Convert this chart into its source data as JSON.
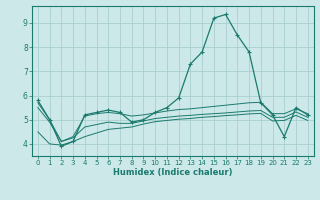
{
  "xlabel": "Humidex (Indice chaleur)",
  "x": [
    0,
    1,
    2,
    3,
    4,
    5,
    6,
    7,
    8,
    9,
    10,
    11,
    12,
    13,
    14,
    15,
    16,
    17,
    18,
    19,
    20,
    21,
    22,
    23
  ],
  "line1": [
    5.8,
    5.0,
    3.9,
    4.1,
    5.2,
    5.3,
    5.4,
    5.3,
    4.9,
    5.0,
    5.3,
    5.5,
    5.9,
    7.3,
    7.8,
    9.2,
    9.35,
    8.5,
    7.8,
    5.7,
    5.2,
    4.3,
    5.5,
    5.2
  ],
  "line2": [
    5.7,
    5.0,
    4.1,
    4.3,
    5.15,
    5.25,
    5.3,
    5.25,
    5.15,
    5.2,
    5.28,
    5.36,
    5.42,
    5.45,
    5.5,
    5.55,
    5.6,
    5.65,
    5.7,
    5.72,
    5.25,
    5.25,
    5.45,
    5.25
  ],
  "line3": [
    5.5,
    4.9,
    4.1,
    4.25,
    4.7,
    4.8,
    4.9,
    4.85,
    4.85,
    4.95,
    5.05,
    5.1,
    5.15,
    5.18,
    5.22,
    5.25,
    5.28,
    5.32,
    5.36,
    5.38,
    5.1,
    5.1,
    5.32,
    5.1
  ],
  "line4": [
    4.5,
    4.0,
    3.95,
    4.1,
    4.3,
    4.45,
    4.6,
    4.65,
    4.7,
    4.82,
    4.92,
    4.97,
    5.02,
    5.05,
    5.1,
    5.13,
    5.17,
    5.2,
    5.24,
    5.26,
    4.95,
    4.97,
    5.18,
    4.97
  ],
  "line_color": "#1a7a6e",
  "bg_color": "#cce8e8",
  "grid_color": "#aacece",
  "ylim": [
    3.5,
    9.7
  ],
  "yticks": [
    4,
    5,
    6,
    7,
    8,
    9
  ],
  "xticks": [
    0,
    1,
    2,
    3,
    4,
    5,
    6,
    7,
    8,
    9,
    10,
    11,
    12,
    13,
    14,
    15,
    16,
    17,
    18,
    19,
    20,
    21,
    22,
    23
  ]
}
